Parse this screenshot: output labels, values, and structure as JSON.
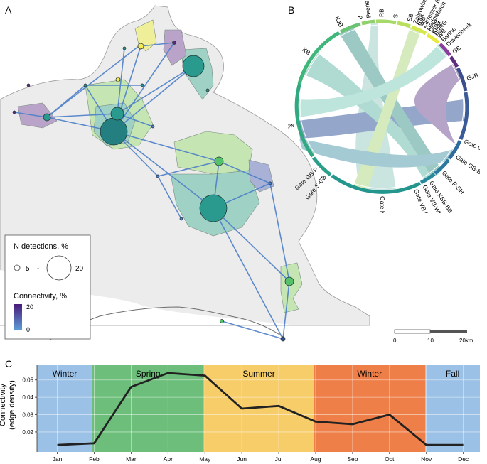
{
  "panels": {
    "a": "A",
    "b": "B",
    "c": "C"
  },
  "colors": {
    "land": "#ececec",
    "land_stroke": "#a8a8a8",
    "coast": "#6e6e6e",
    "teal": "#2a9a8e",
    "teal_dark": "#237f80",
    "green": "#55c16a",
    "yellow": "#f3ea55",
    "purple": "#5b2d7a",
    "blue_edge": "#4d7fc9",
    "lagoon_teal": "#9fd1c5",
    "lagoon_green": "#c5e6b3",
    "lagoon_yellow": "#efef9a",
    "lagoon_purple": "#b9a3c8",
    "lagoon_blue": "#a9b2d6",
    "winter_bg": "#9cc1e6",
    "spring_bg": "#6cbe7a",
    "summer_bg": "#f7cd6a",
    "autumn_bg": "#ee7f48",
    "fall_bg": "#9cc1e6",
    "line": "#222222"
  },
  "map_legend": {
    "detections_title": "N detections, %",
    "small": "5",
    "sep": "-",
    "large": "20",
    "connectivity_title": "Connectivity, %",
    "grad_max": "20",
    "grad_min": "0"
  },
  "scale_bar": {
    "t0": "0",
    "t1": "10",
    "t2": "20km"
  },
  "chord_labels": [
    {
      "text": "Peene",
      "angle": -8
    },
    {
      "text": "RB",
      "angle": 0
    },
    {
      "text": "S",
      "angle": 9
    },
    {
      "text": "SB",
      "angle": 18
    },
    {
      "text": "Zahrowbach",
      "angle": 22
    },
    {
      "text": "PSK",
      "angle": 24
    },
    {
      "text": "WB",
      "angle": 25.5
    },
    {
      "text": "Zarrenzer Beck",
      "angle": 28
    },
    {
      "text": "Gadowbach",
      "angle": 31
    },
    {
      "text": "DMB",
      "angle": 33
    },
    {
      "text": "KHM",
      "angle": 35
    },
    {
      "text": "BRRG",
      "angle": 37
    },
    {
      "text": "WB",
      "angle": 39.5
    },
    {
      "text": "Barthe",
      "angle": 43
    },
    {
      "text": "Duwenbeek",
      "angle": 47
    },
    {
      "text": "GB",
      "angle": 53
    },
    {
      "text": "GJB",
      "angle": 72
    },
    {
      "text": "Gate G-KB",
      "angle": 113
    },
    {
      "text": "Gate GB-BS",
      "angle": 124
    },
    {
      "text": "Gate P-SH",
      "angle": 137
    },
    {
      "text": "Gate KSB-BS",
      "angle": 147
    },
    {
      "text": "Gate VB-WS",
      "angle": 152
    },
    {
      "text": "Gate VB-BS",
      "angle": 158
    },
    {
      "text": "Gate KB-S",
      "angle": 180
    },
    {
      "text": "Gate S-GB",
      "angle": 219
    },
    {
      "text": "Gate GB-P",
      "angle": 226
    },
    {
      "text": "Grabow",
      "angle": 258
    },
    {
      "text": "KB",
      "angle": 306
    },
    {
      "text": "KJB",
      "angle": 333
    },
    {
      "text": "P",
      "angle": 346
    }
  ],
  "chart_data": {
    "type": "line",
    "title": "",
    "xlabel": "",
    "ylabel": "Connectivity (edge density)",
    "categories": [
      "Jan",
      "Feb",
      "Mar",
      "Apr",
      "May",
      "Jun",
      "Jul",
      "Aug",
      "Sep",
      "Oct",
      "Nov",
      "Dec"
    ],
    "values": [
      0.0125,
      0.0135,
      0.046,
      0.054,
      0.0525,
      0.0335,
      0.035,
      0.026,
      0.0245,
      0.03,
      0.0125,
      0.0125
    ],
    "yticks": [
      "0.02",
      "0.03",
      "0.04",
      "0.05"
    ],
    "ylim": [
      0.0085,
      0.0585
    ],
    "seasons": [
      {
        "label": "Winter",
        "start": -1.0,
        "end": 0.95
      },
      {
        "label": "Spring",
        "start": 0.95,
        "end": 3.97
      },
      {
        "label": "Summer",
        "start": 3.97,
        "end": 6.95
      },
      {
        "label": "Winter",
        "start": 6.95,
        "end": 9.97
      },
      {
        "label": "Fall",
        "start": 9.97,
        "end": 11.45
      }
    ],
    "grid": true
  }
}
